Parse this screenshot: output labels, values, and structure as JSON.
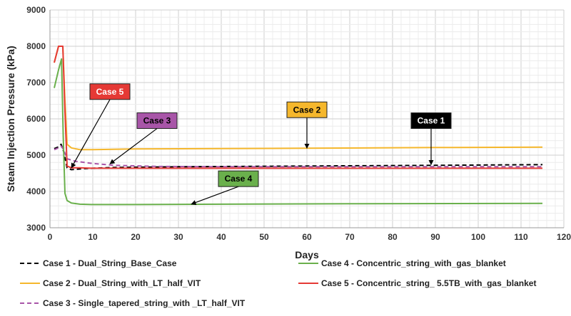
{
  "chart_data": {
    "type": "line",
    "title": "",
    "xlabel": "Days",
    "ylabel": "Steam Injection Pressure (kPa)",
    "xlim": [
      0,
      120
    ],
    "ylim": [
      3000,
      9000
    ],
    "x_ticks": [
      0,
      10,
      20,
      30,
      40,
      50,
      60,
      70,
      80,
      90,
      100,
      110,
      120
    ],
    "y_ticks": [
      3000,
      4000,
      5000,
      6000,
      7000,
      8000,
      9000
    ],
    "grid": true,
    "legend_position": "bottom",
    "series": [
      {
        "name": "Case 1 - Dual_String_Base_Case",
        "color": "#000000",
        "dash": "dashed",
        "x": [
          1,
          2,
          2.6,
          3.2,
          4,
          5,
          8,
          15,
          30,
          60,
          90,
          115
        ],
        "y": [
          5180,
          5230,
          5300,
          5100,
          4650,
          4600,
          4630,
          4660,
          4680,
          4700,
          4720,
          4740
        ]
      },
      {
        "name": "Case 2 - Dual_String_with_LT_half_VIT",
        "color": "#f5b72c",
        "dash": "solid",
        "x": [
          1,
          2,
          3,
          3.5,
          4,
          5,
          7,
          10,
          20,
          40,
          60,
          90,
          115
        ],
        "y": [
          7550,
          8000,
          8000,
          6500,
          5300,
          5200,
          5150,
          5150,
          5170,
          5180,
          5190,
          5210,
          5220
        ]
      },
      {
        "name": "Case 3 - Single_tapered_string_with _LT_half_VIT",
        "color": "#a855a8",
        "dash": "dashed",
        "x": [
          1,
          2,
          2.6,
          3.2,
          4,
          6,
          10,
          15,
          25,
          40,
          60,
          90,
          115
        ],
        "y": [
          5150,
          5200,
          5250,
          5150,
          4900,
          4830,
          4770,
          4720,
          4690,
          4680,
          4680,
          4680,
          4680
        ]
      },
      {
        "name": "Case 4 - Concentric_string_with_gas_blanket",
        "color": "#6ab04c",
        "dash": "solid",
        "x": [
          1,
          2,
          2.7,
          3.1,
          3.5,
          4,
          5,
          7,
          10,
          20,
          40,
          70,
          115
        ],
        "y": [
          6850,
          7350,
          7650,
          5500,
          3950,
          3750,
          3680,
          3650,
          3640,
          3640,
          3650,
          3660,
          3670
        ]
      },
      {
        "name": "Case 5 - Concentric_string_ 5.5TB_with_gas_blanket",
        "color": "#e53935",
        "dash": "solid",
        "x": [
          1,
          2,
          3,
          3.5,
          4,
          5,
          7,
          10,
          20,
          40,
          70,
          115
        ],
        "y": [
          7550,
          8000,
          8000,
          6200,
          4700,
          4650,
          4650,
          4640,
          4640,
          4640,
          4640,
          4640
        ]
      }
    ],
    "annotations": [
      {
        "label": "Case 1",
        "bg": "#000000",
        "fg": "#ffffff",
        "box": [
          89,
          5950
        ],
        "target": [
          89,
          4740
        ]
      },
      {
        "label": "Case 2",
        "bg": "#f5b72c",
        "fg": "#000000",
        "box": [
          60,
          6250
        ],
        "target": [
          60,
          5190
        ]
      },
      {
        "label": "Case 3",
        "bg": "#a855a8",
        "fg": "#000000",
        "box": [
          25,
          5950
        ],
        "target": [
          14,
          4760
        ]
      },
      {
        "label": "Case 4",
        "bg": "#6ab04c",
        "fg": "#000000",
        "box": [
          44,
          4350
        ],
        "target": [
          33,
          3650
        ]
      },
      {
        "label": "Case 5",
        "bg": "#e53935",
        "fg": "#ffffff",
        "box": [
          14,
          6750
        ],
        "target": [
          5,
          4650
        ]
      }
    ]
  }
}
